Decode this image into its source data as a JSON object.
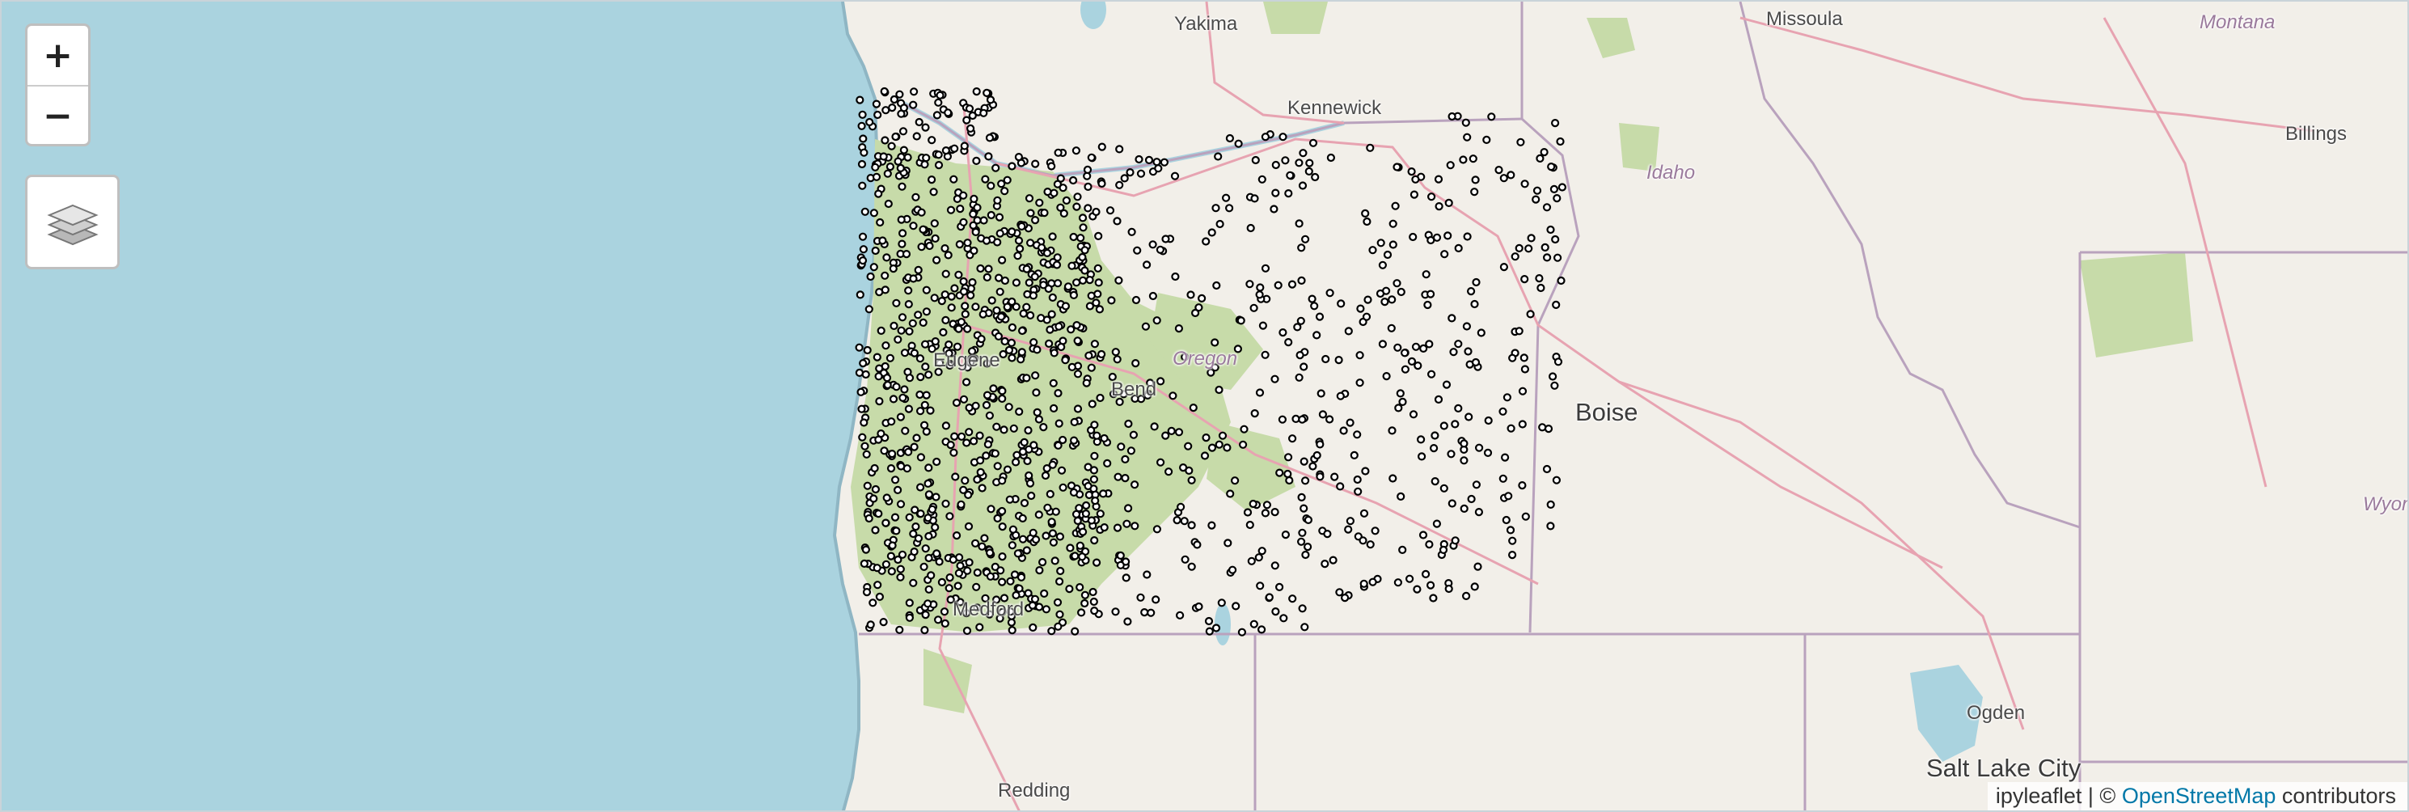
{
  "map": {
    "attribution_prefix": "ipyleaflet | © ",
    "attribution_link": "OpenStreetMap",
    "attribution_suffix": " contributors",
    "zoom_in": "+",
    "zoom_out": "−",
    "layers_icon": "layers-icon",
    "colors": {
      "water": "#aad3df",
      "land": "#f2efe9",
      "forest": "#c7dba9",
      "border": "#b9a2bd",
      "road": "#e7a3b1",
      "point": "#000000"
    }
  },
  "places": {
    "yakima": "Yakima",
    "missoula": "Missoula",
    "montana": "Montana",
    "kennewick": "Kennewick",
    "billings": "Billings",
    "idaho": "Idaho",
    "oregon": "Oregon",
    "bend": "Bend",
    "boise": "Boise",
    "eugene": "Eugene",
    "medford": "Medford",
    "ogden": "Ogden",
    "redding": "Redding",
    "salt_lake_city": "Salt Lake City",
    "wyoming": "Wyon"
  }
}
